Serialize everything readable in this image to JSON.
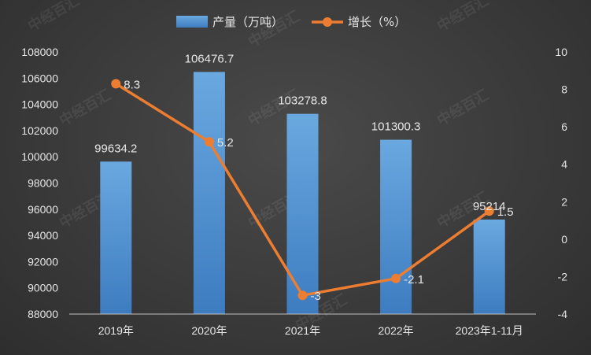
{
  "chart_data": {
    "type": "bar+line",
    "categories": [
      "2019年",
      "2020年",
      "2021年",
      "2022年",
      "2023年1-11月"
    ],
    "series": [
      {
        "name": "产量（万吨）",
        "type": "bar",
        "axis": "left",
        "values": [
          99634.2,
          106476.7,
          103278.8,
          101300.3,
          95214
        ],
        "labels": [
          "99634.2",
          "106476.7",
          "103278.8",
          "101300.3",
          "95214"
        ]
      },
      {
        "name": "增长（%）",
        "type": "line",
        "axis": "right",
        "values": [
          8.3,
          5.2,
          -3,
          -2.1,
          1.5
        ],
        "labels": [
          "8.3",
          "5.2",
          "-3",
          "-2.1",
          "1.5"
        ]
      }
    ],
    "y_left": {
      "min": 88000,
      "max": 108000,
      "step": 2000
    },
    "y_right": {
      "min": -4,
      "max": 10,
      "step": 2
    },
    "legend_position": "top-center",
    "grid": false,
    "colors": {
      "bar": "#5b9bd5",
      "bar_dark": "#3a78bb",
      "line": "#ed7d31",
      "background": "#3a3a3a",
      "text": "#e6e6e6"
    }
  },
  "watermark": {
    "text": "中经百汇",
    "icon": "watermark-logo-icon"
  }
}
